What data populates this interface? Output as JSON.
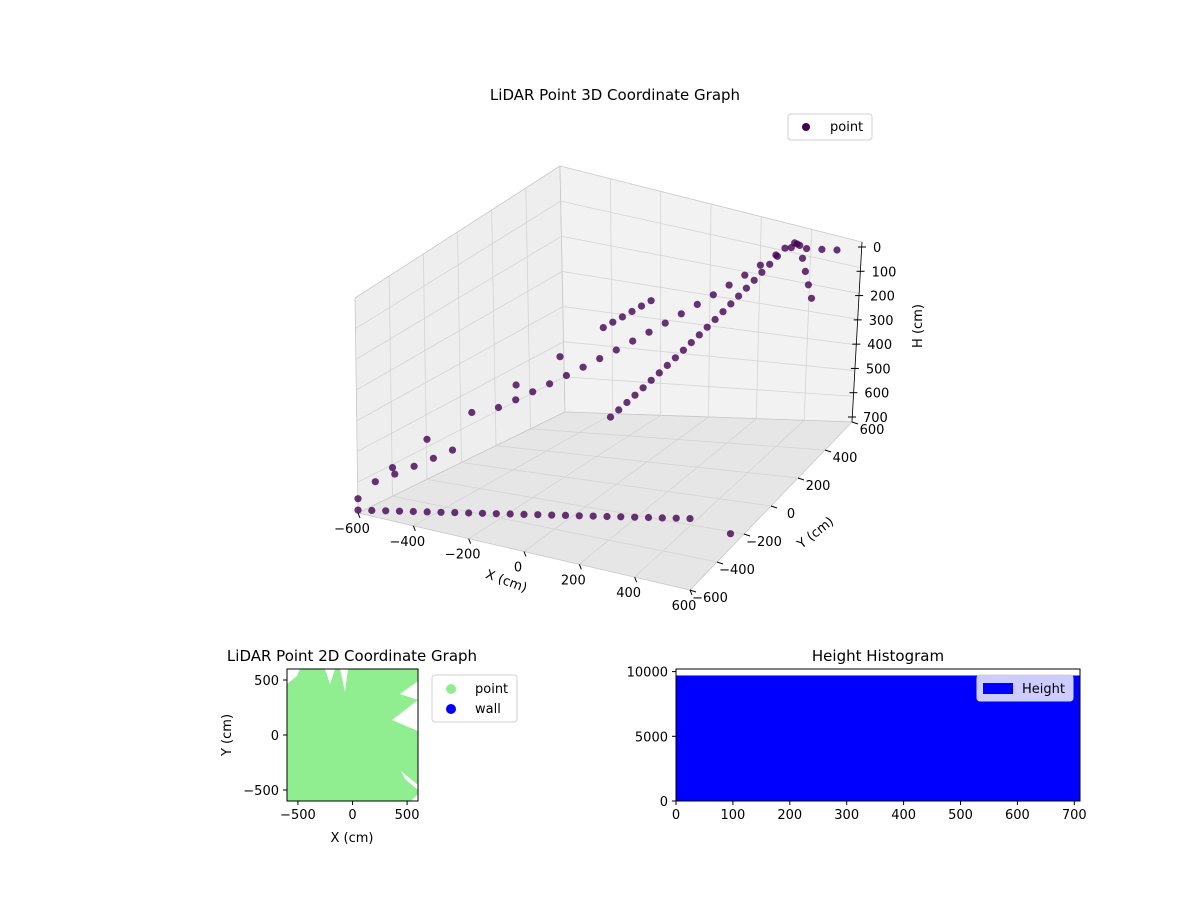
{
  "chart_data": [
    {
      "type": "scatter",
      "projection": "3d",
      "title": "LiDAR Point 3D Coordinate Graph",
      "xlabel": "X (cm)",
      "ylabel": "Y (cm)",
      "zlabel": "H (cm)",
      "xlim": [
        -600,
        600
      ],
      "ylim": [
        -600,
        600
      ],
      "zlim": [
        0,
        700
      ],
      "z_inverted": true,
      "xticks": [
        "−600",
        "−400",
        "−200",
        "0",
        "200",
        "400",
        "600"
      ],
      "yticks": [
        "−600",
        "−400",
        "−200",
        "0",
        "200",
        "400",
        "600"
      ],
      "zticks": [
        "0",
        "100",
        "200",
        "300",
        "400",
        "500",
        "600",
        "700"
      ],
      "legend": {
        "placement": "top-right",
        "entries": [
          "point"
        ]
      },
      "series": [
        {
          "name": "point",
          "color": "#440154",
          "x": [
            -600,
            -600,
            -600,
            -560,
            -520,
            -480,
            -440,
            -400,
            -360,
            -320,
            -280,
            -240,
            -600,
            -560,
            -520,
            -480,
            -440,
            -600,
            -550,
            -500,
            -450,
            -400,
            -350,
            -300,
            -250,
            -200,
            -150,
            -100,
            -50,
            0,
            50,
            100,
            150,
            200,
            250,
            300,
            350,
            400,
            450,
            500,
            550,
            600,
            560,
            520,
            480,
            440,
            400,
            360,
            320,
            280,
            240,
            200,
            160,
            120,
            80,
            40,
            0,
            -40,
            -80,
            -120,
            -160,
            -200,
            -240,
            -280,
            600,
            600,
            560,
            520,
            480,
            440,
            400,
            360,
            320,
            300,
            280,
            260,
            240,
            220,
            200,
            180,
            160,
            140,
            120,
            100,
            80,
            60,
            40,
            20,
            0,
            -20,
            -40,
            -60,
            -80,
            -100,
            -120
          ],
          "y": [
            -600,
            -400,
            -200,
            0,
            200,
            400,
            600,
            600,
            600,
            600,
            600,
            600,
            -500,
            -450,
            -400,
            -350,
            -300,
            -600,
            -600,
            -600,
            -600,
            -600,
            -600,
            -600,
            -600,
            -600,
            -600,
            -600,
            -600,
            -600,
            -600,
            -600,
            -600,
            -600,
            -600,
            -600,
            -600,
            -600,
            -600,
            -600,
            -600,
            -600,
            560,
            520,
            480,
            440,
            400,
            360,
            320,
            280,
            240,
            200,
            160,
            120,
            80,
            40,
            0,
            -40,
            -80,
            -120,
            -160,
            -200,
            -240,
            -280,
            -300,
            300,
            350,
            400,
            450,
            500,
            550,
            600,
            600,
            580,
            560,
            540,
            520,
            500,
            480,
            460,
            440,
            420,
            400,
            380,
            360,
            340,
            320,
            300,
            280,
            260,
            240,
            220,
            200,
            180,
            160
          ],
          "z": [
            650,
            600,
            560,
            520,
            480,
            440,
            400,
            380,
            360,
            340,
            320,
            300,
            620,
            600,
            580,
            560,
            540,
            690,
            680,
            670,
            660,
            650,
            640,
            630,
            620,
            610,
            600,
            590,
            580,
            570,
            560,
            550,
            540,
            530,
            520,
            510,
            500,
            490,
            480,
            470,
            460,
            450,
            80,
            60,
            40,
            20,
            30,
            50,
            70,
            90,
            110,
            130,
            150,
            170,
            190,
            210,
            230,
            250,
            270,
            290,
            310,
            330,
            350,
            370,
            650,
            120,
            100,
            80,
            60,
            40,
            60,
            80,
            100,
            120,
            140,
            160,
            180,
            200,
            220,
            240,
            260,
            280,
            300,
            320,
            340,
            360,
            380,
            400,
            420,
            440,
            460,
            480,
            500,
            520,
            540
          ]
        }
      ]
    },
    {
      "type": "scatter",
      "title": "LiDAR Point 2D Coordinate Graph",
      "xlabel": "X (cm)",
      "ylabel": "Y (cm)",
      "xlim": [
        -600,
        600
      ],
      "ylim": [
        -600,
        600
      ],
      "xticks": [
        "−500",
        "0",
        "500"
      ],
      "yticks": [
        "−500",
        "0",
        "500"
      ],
      "legend": {
        "placement": "outside-right",
        "entries": [
          "point",
          "wall"
        ]
      },
      "series": [
        {
          "name": "point",
          "color": "#90ee90",
          "coverage": "dense fill of nearly entire plot area"
        },
        {
          "name": "wall",
          "color": "#0000ff",
          "x": [],
          "y": []
        }
      ]
    },
    {
      "type": "bar",
      "subtype": "histogram",
      "title": "Height Histogram",
      "xlim": [
        0,
        710
      ],
      "ylim": [
        0,
        10200
      ],
      "xticks": [
        "0",
        "100",
        "200",
        "300",
        "400",
        "500",
        "600",
        "700"
      ],
      "yticks": [
        "0",
        "5000",
        "10000"
      ],
      "legend": {
        "placement": "top-right",
        "entries": [
          "Height"
        ]
      },
      "series": [
        {
          "name": "Height",
          "color": "#0000ff",
          "bins": [
            0,
            710
          ],
          "values": [
            9700
          ]
        }
      ]
    }
  ]
}
